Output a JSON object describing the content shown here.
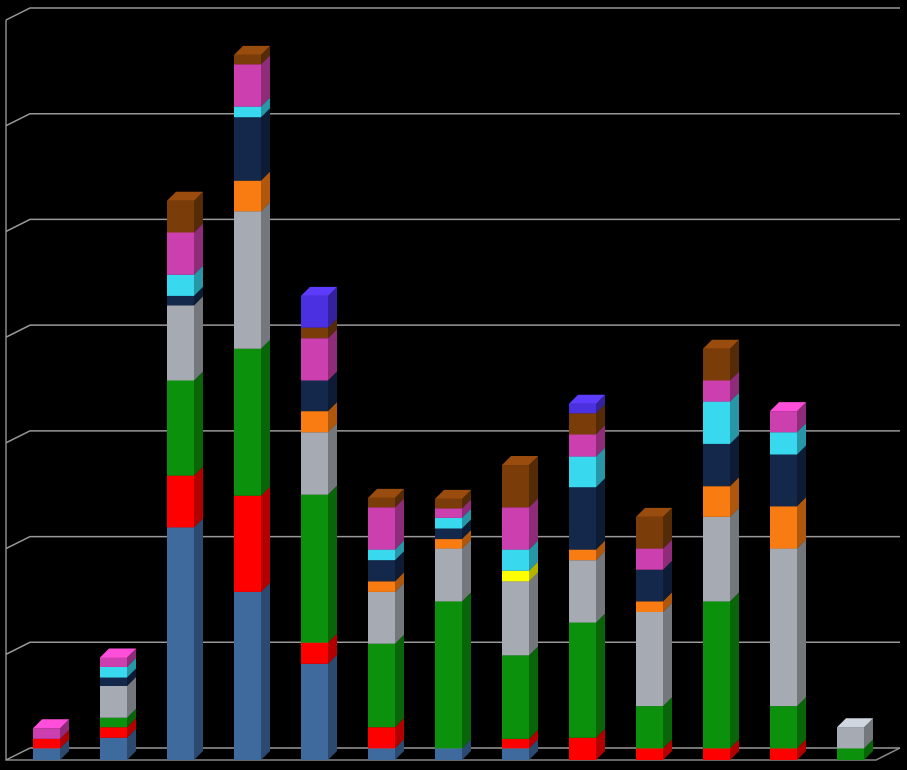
{
  "chart_data": {
    "type": "bar3d-stacked",
    "categories": [
      null,
      null,
      null,
      null,
      null,
      null,
      null,
      null,
      null,
      null,
      null,
      null,
      null
    ],
    "ylim": [
      0,
      70
    ],
    "yticks": [
      0,
      10,
      20,
      30,
      40,
      50,
      60,
      70
    ],
    "grid": true,
    "series": [
      {
        "color": "#3f6a9e",
        "values": [
          1.1,
          2.1,
          22,
          15.9,
          9.1,
          1.1,
          1.1,
          1.1,
          0,
          0,
          0,
          0,
          0
        ]
      },
      {
        "color": "#ff0000",
        "values": [
          0.9,
          1.0,
          4.9,
          9.1,
          2.0,
          2.0,
          0,
          0.9,
          2.1,
          1.1,
          1.1,
          1.1,
          0
        ]
      },
      {
        "color": "#0c910c",
        "values": [
          0,
          0.9,
          9.0,
          13.9,
          14.0,
          7.9,
          13.9,
          7.9,
          10.9,
          4.0,
          13.9,
          4.0,
          1.1
        ]
      },
      {
        "color": "#a6abb3",
        "values": [
          0,
          3.0,
          7.1,
          13.0,
          5.9,
          4.9,
          5.0,
          7.0,
          5.9,
          8.9,
          8.0,
          14.9,
          2.0
        ]
      },
      {
        "color": "#f97c12",
        "values": [
          0,
          0,
          0,
          2.9,
          2.0,
          1.0,
          0.9,
          0,
          1.0,
          1.0,
          2.9,
          4.0,
          0
        ]
      },
      {
        "color": "#ffff00",
        "values": [
          0,
          0,
          0,
          0,
          0,
          0,
          0,
          1.0,
          0,
          0,
          0,
          0,
          0
        ]
      },
      {
        "color": "#13284a",
        "values": [
          0,
          0.8,
          0.9,
          6.0,
          2.9,
          2.0,
          1.0,
          0,
          5.9,
          3.0,
          4.0,
          4.9,
          0
        ]
      },
      {
        "color": "#38d8ef",
        "values": [
          0,
          1.0,
          2.0,
          1.0,
          0,
          1.0,
          1.0,
          2.0,
          2.9,
          0,
          4.0,
          2.1,
          0
        ]
      },
      {
        "color": "#cc3fae",
        "values": [
          1.0,
          0.9,
          4.0,
          4.0,
          4.0,
          4.0,
          0.9,
          4.0,
          2.1,
          2.0,
          2.0,
          2.0,
          0
        ]
      },
      {
        "color": "#7a3d0a",
        "values": [
          0,
          0,
          3.0,
          0.9,
          1.0,
          0.9,
          0.9,
          4.0,
          2.0,
          3.0,
          3.0,
          0,
          0
        ]
      },
      {
        "color": "#4a30e0",
        "values": [
          0,
          0,
          0,
          0,
          3.0,
          0,
          0,
          0,
          0.9,
          0,
          0,
          0,
          0
        ]
      }
    ]
  }
}
